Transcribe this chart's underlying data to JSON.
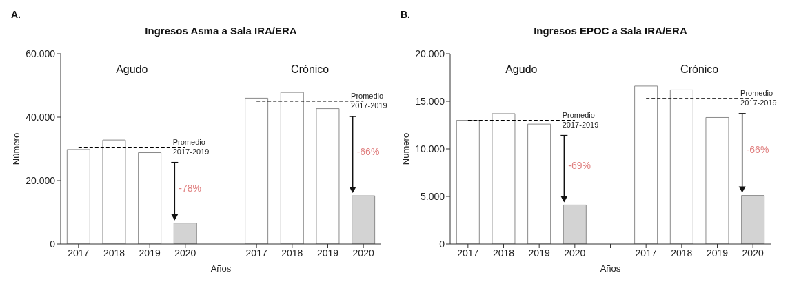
{
  "chart_data": [
    {
      "type": "bar",
      "title": "Ingresos Asma a Sala IRA/ERA",
      "xlabel": "Años",
      "ylabel": "Número",
      "categories": [
        "2017",
        "2018",
        "2019",
        "2020",
        null,
        "2017",
        "2018",
        "2019",
        "2020"
      ],
      "ylim": [
        0,
        60000
      ],
      "yticks": [
        0,
        {
          "value": 20000,
          "label": "20.000"
        },
        {
          "value": 40000,
          "label": "40.000"
        },
        {
          "value": 60000,
          "label": "60.000"
        }
      ],
      "series": [
        {
          "values": [
            29800,
            32800,
            28800,
            6600,
            null,
            46000,
            47800,
            42700,
            15200
          ],
          "colors": [
            "#ffffff",
            "#ffffff",
            "#ffffff",
            "#d3d3d3",
            "#ffffff",
            "#ffffff",
            "#ffffff",
            "#ffffff",
            "#d3d3d3"
          ]
        },
        {
          "type": "line",
          "color": "#000000",
          "line_style": "dashed",
          "marker": "none",
          "values": [
            30500,
            30500,
            30500,
            30500,
            null,
            null,
            null,
            null,
            null
          ]
        },
        {
          "type": "line",
          "color": "#000000",
          "line_style": "dashed",
          "marker": "none",
          "values": [
            null,
            null,
            null,
            null,
            null,
            45000,
            45000,
            45000,
            45000
          ]
        }
      ],
      "annotations": [
        "A.",
        "Agudo",
        "Crónico",
        "Promedio 2017-2019",
        "Promedio 2017-2019",
        "-78%",
        "-66%"
      ]
    },
    {
      "type": "bar",
      "title": "Ingresos EPOC a Sala IRA/ERA",
      "xlabel": "Años",
      "ylabel": "Número",
      "categories": [
        "2017",
        "2018",
        "2019",
        "2020",
        null,
        "2017",
        "2018",
        "2019",
        "2020"
      ],
      "ylim": [
        0,
        20000
      ],
      "yticks": [
        0,
        {
          "value": 5000,
          "label": "5.000"
        },
        {
          "value": 10000,
          "label": "10.000"
        },
        {
          "value": 15000,
          "label": "15.000"
        },
        {
          "value": 20000,
          "label": "20.000"
        }
      ],
      "series": [
        {
          "values": [
            13000,
            13700,
            12600,
            4100,
            null,
            16600,
            16200,
            13300,
            5100
          ],
          "colors": [
            "#ffffff",
            "#ffffff",
            "#ffffff",
            "#d3d3d3",
            "#ffffff",
            "#ffffff",
            "#ffffff",
            "#ffffff",
            "#d3d3d3"
          ]
        },
        {
          "type": "line",
          "color": "#000000",
          "line_style": "dashed",
          "marker": "none",
          "values": [
            13000,
            13000,
            13000,
            13000,
            null,
            null,
            null,
            null,
            null
          ]
        },
        {
          "type": "line",
          "color": "#000000",
          "line_style": "dashed",
          "marker": "none",
          "values": [
            null,
            null,
            null,
            null,
            null,
            15300,
            15300,
            15300,
            15300
          ]
        }
      ],
      "annotations": [
        "B.",
        "Agudo",
        "Crónico",
        "Promedio 2017-2019",
        "Promedio 2017-2019",
        "-69%",
        "-66%"
      ]
    }
  ]
}
